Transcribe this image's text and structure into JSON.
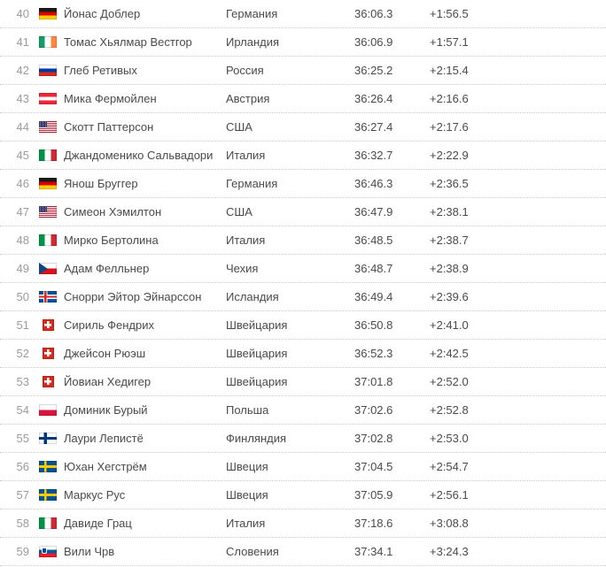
{
  "results_table": {
    "rows": [
      {
        "rank": "40",
        "flag": "germany",
        "name": "Йонас Доблер",
        "country": "Германия",
        "time": "36:06.3",
        "gap": "+1:56.5"
      },
      {
        "rank": "41",
        "flag": "ireland",
        "name": "Томас Хьялмар Вестгор",
        "country": "Ирландия",
        "time": "36:06.9",
        "gap": "+1:57.1"
      },
      {
        "rank": "42",
        "flag": "russia",
        "name": "Глеб Ретивых",
        "country": "Россия",
        "time": "36:25.2",
        "gap": "+2:15.4"
      },
      {
        "rank": "43",
        "flag": "austria",
        "name": "Мика Фермойлен",
        "country": "Австрия",
        "time": "36:26.4",
        "gap": "+2:16.6"
      },
      {
        "rank": "44",
        "flag": "usa",
        "name": "Скотт Паттерсон",
        "country": "США",
        "time": "36:27.4",
        "gap": "+2:17.6"
      },
      {
        "rank": "45",
        "flag": "italy",
        "name": "Джандоменико Сальвадори",
        "country": "Италия",
        "time": "36:32.7",
        "gap": "+2:22.9"
      },
      {
        "rank": "46",
        "flag": "germany",
        "name": "Янош Бруггер",
        "country": "Германия",
        "time": "36:46.3",
        "gap": "+2:36.5"
      },
      {
        "rank": "47",
        "flag": "usa",
        "name": "Симеон Хэмилтон",
        "country": "США",
        "time": "36:47.9",
        "gap": "+2:38.1"
      },
      {
        "rank": "48",
        "flag": "italy",
        "name": "Мирко Бертолина",
        "country": "Италия",
        "time": "36:48.5",
        "gap": "+2:38.7"
      },
      {
        "rank": "49",
        "flag": "czech-republic",
        "name": "Адам Фелльнер",
        "country": "Чехия",
        "time": "36:48.7",
        "gap": "+2:38.9"
      },
      {
        "rank": "50",
        "flag": "iceland",
        "name": "Снорри Эйтор Эйнарссон",
        "country": "Исландия",
        "time": "36:49.4",
        "gap": "+2:39.6"
      },
      {
        "rank": "51",
        "flag": "switzerland",
        "name": "Сириль Фендрих",
        "country": "Швейцария",
        "time": "36:50.8",
        "gap": "+2:41.0"
      },
      {
        "rank": "52",
        "flag": "switzerland",
        "name": "Джейсон Рюэш",
        "country": "Швейцария",
        "time": "36:52.3",
        "gap": "+2:42.5"
      },
      {
        "rank": "53",
        "flag": "switzerland",
        "name": "Йовиан Хедигер",
        "country": "Швейцария",
        "time": "37:01.8",
        "gap": "+2:52.0"
      },
      {
        "rank": "54",
        "flag": "poland",
        "name": "Доминик Бурый",
        "country": "Польша",
        "time": "37:02.6",
        "gap": "+2:52.8"
      },
      {
        "rank": "55",
        "flag": "finland",
        "name": "Лаури Лепистё",
        "country": "Финляндия",
        "time": "37:02.8",
        "gap": "+2:53.0"
      },
      {
        "rank": "56",
        "flag": "sweden",
        "name": "Юхан Хегстрём",
        "country": "Швеция",
        "time": "37:04.5",
        "gap": "+2:54.7"
      },
      {
        "rank": "57",
        "flag": "sweden",
        "name": "Маркус Рус",
        "country": "Швеция",
        "time": "37:05.9",
        "gap": "+2:56.1"
      },
      {
        "rank": "58",
        "flag": "italy",
        "name": "Давиде Грац",
        "country": "Италия",
        "time": "37:18.6",
        "gap": "+3:08.8"
      },
      {
        "rank": "59",
        "flag": "slovenia",
        "name": "Вили Чрв",
        "country": "Словения",
        "time": "37:34.1",
        "gap": "+3:24.3"
      }
    ]
  },
  "colors": {
    "row_separator": "#c9c9c9",
    "rank_text": "#9b9b9b",
    "main_text": "#4a4a4a",
    "row_background": "#ffffff"
  }
}
